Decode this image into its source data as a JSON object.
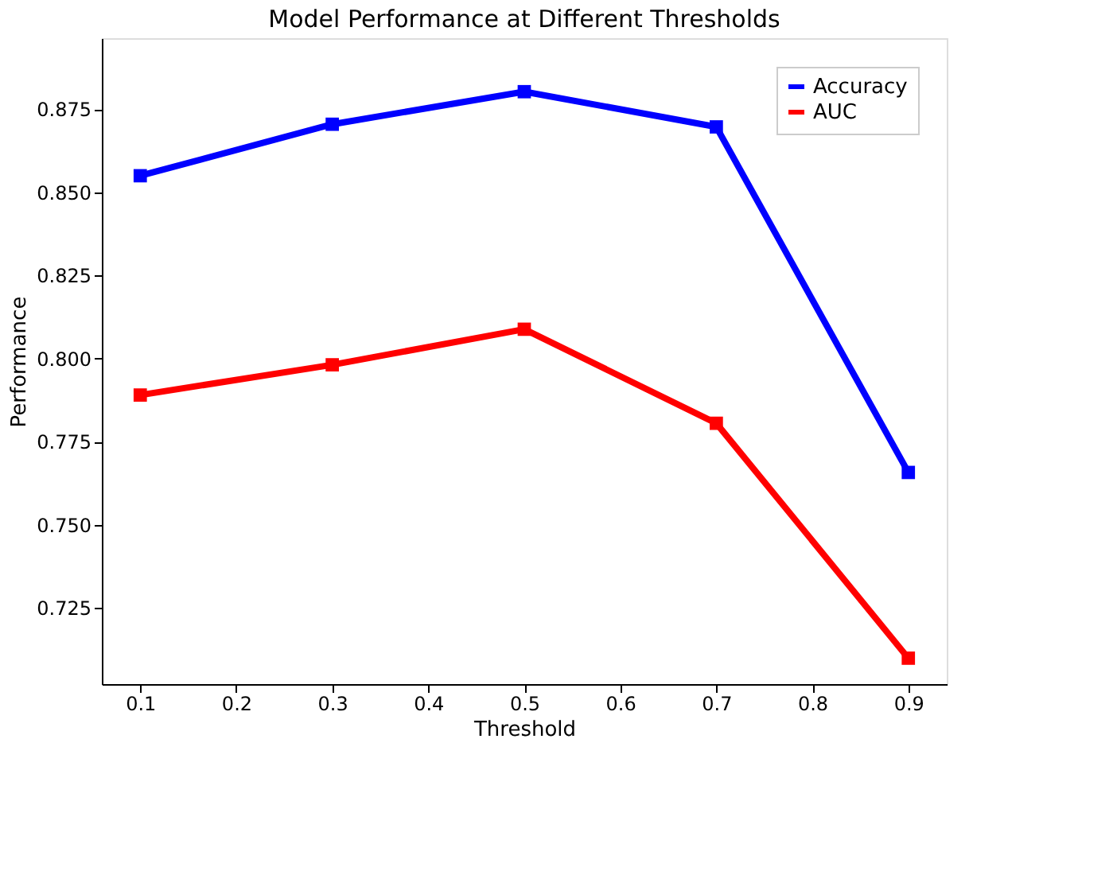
{
  "chart_data": {
    "type": "line",
    "title": "Model Performance at Different Thresholds",
    "xlabel": "Threshold",
    "ylabel": "Performance",
    "x": [
      0.1,
      0.3,
      0.5,
      0.7,
      0.9
    ],
    "series": [
      {
        "name": "Accuracy",
        "color": "#0000ff",
        "values": [
          0.855,
          0.8705,
          0.8803,
          0.8697,
          0.7657
        ]
      },
      {
        "name": "AUC",
        "color": "#ff0000",
        "values": [
          0.789,
          0.7981,
          0.8088,
          0.7805,
          0.7098
        ]
      }
    ],
    "xlim": [
      0.06,
      0.94
    ],
    "xticks": [
      0.1,
      0.2,
      0.3,
      0.4,
      0.5,
      0.6,
      0.7,
      0.8,
      0.9
    ],
    "ylim": [
      0.702,
      0.8964
    ],
    "yticks": [
      {
        "value": 0.725,
        "label": "0.725"
      },
      {
        "value": 0.75,
        "label": "0.750"
      },
      {
        "value": 0.775,
        "label": "0.775"
      },
      {
        "value": 0.8,
        "label": "0.800"
      },
      {
        "value": 0.825,
        "label": "0.825"
      },
      {
        "value": 0.85,
        "label": "0.850"
      },
      {
        "value": 0.875,
        "label": "0.875"
      }
    ],
    "grid": false,
    "legend": "top right",
    "marker": "square",
    "line_style": "solid"
  }
}
